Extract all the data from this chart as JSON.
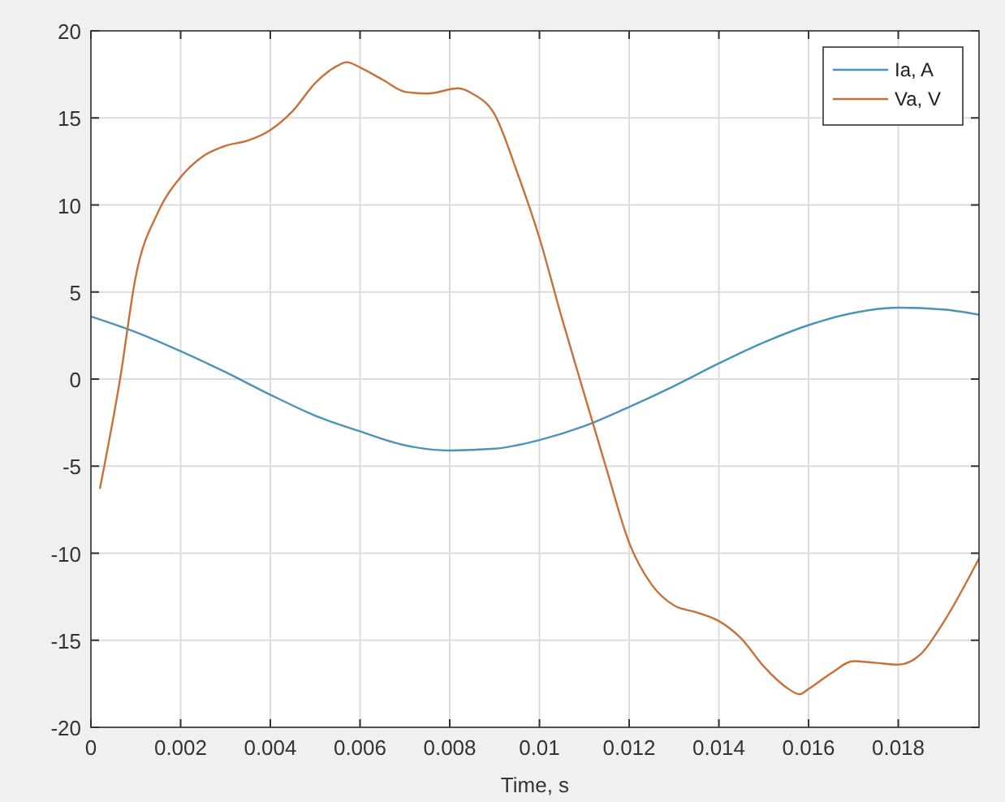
{
  "chart_data": {
    "type": "line",
    "xlabel": "Time, s",
    "xlim": [
      0,
      0.0198
    ],
    "xticks": [
      0,
      0.002,
      0.004,
      0.006,
      0.008,
      0.01,
      0.012,
      0.014,
      0.016,
      0.018
    ],
    "ylim": [
      -20,
      20
    ],
    "yticks": [
      -20,
      -15,
      -10,
      -5,
      0,
      5,
      10,
      15,
      20
    ],
    "grid": true,
    "legend": "top right",
    "series": [
      {
        "name": "Ia, A",
        "color": "#4a94b8",
        "x": [
          0,
          0.001,
          0.002,
          0.003,
          0.004,
          0.005,
          0.006,
          0.007,
          0.008,
          0.009,
          0.01,
          0.011,
          0.012,
          0.013,
          0.014,
          0.015,
          0.016,
          0.017,
          0.018,
          0.019,
          0.0198
        ],
        "values": [
          3.6,
          2.7,
          1.6,
          0.4,
          -0.9,
          -2.1,
          -3.0,
          -3.8,
          -4.1,
          -4.0,
          -3.5,
          -2.7,
          -1.6,
          -0.4,
          0.9,
          2.1,
          3.1,
          3.8,
          4.1,
          4.0,
          3.7
        ]
      },
      {
        "name": "Va, V",
        "color": "#c8703a",
        "x": [
          0.0002,
          0.00065,
          0.001,
          0.0015,
          0.002,
          0.0025,
          0.003,
          0.0035,
          0.004,
          0.0045,
          0.005,
          0.0055,
          0.0057,
          0.006,
          0.0065,
          0.007,
          0.0075,
          0.0082,
          0.0085,
          0.009,
          0.0095,
          0.01,
          0.0105,
          0.0109,
          0.0115,
          0.012,
          0.0125,
          0.013,
          0.0135,
          0.014,
          0.0145,
          0.015,
          0.0155,
          0.0158,
          0.016,
          0.0165,
          0.017,
          0.0175,
          0.018,
          0.0185,
          0.019,
          0.0198
        ],
        "values": [
          -6.3,
          0,
          5.9,
          9.6,
          11.6,
          12.8,
          13.4,
          13.7,
          14.3,
          15.4,
          17.0,
          18.0,
          18.2,
          17.9,
          17.2,
          16.5,
          16.4,
          16.7,
          16.4,
          15.2,
          11.9,
          8.1,
          3.5,
          0,
          -5.2,
          -9.4,
          -11.8,
          -13.0,
          -13.4,
          -13.9,
          -14.9,
          -16.5,
          -17.7,
          -18.1,
          -17.8,
          -16.9,
          -16.2,
          -16.3,
          -16.4,
          -15.8,
          -14.0,
          -10.3
        ]
      }
    ]
  }
}
